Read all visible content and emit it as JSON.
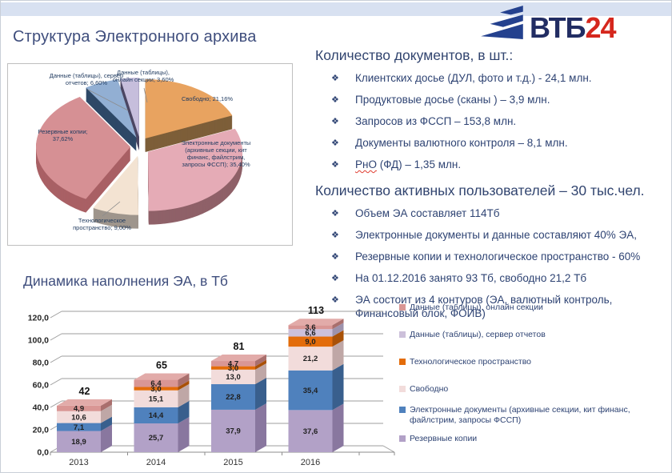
{
  "slide": {
    "title": "Структура Электронного архива"
  },
  "logo": {
    "brand": "ВТБ",
    "suffix": "24"
  },
  "docs": {
    "heading": "Количество документов, в шт.:",
    "items": [
      {
        "text": "Клиентских досье (ДУЛ, фото и т.д.) - 24,1 млн."
      },
      {
        "text": "Продуктовые досье (сканы ) – 3,9 млн."
      },
      {
        "text": "Запросов из ФССП – 153,8 млн."
      },
      {
        "text": "Документы валютного контроля – 8,1 млн."
      },
      {
        "text": "РнО (ФД) – 1,35 млн.",
        "wavy_prefix": "РнО"
      }
    ]
  },
  "users": {
    "heading": "Количество активных пользователей – 30 тыс.чел.",
    "items": [
      {
        "text": "Объем ЭА составляет 114Тб"
      },
      {
        "text": "Электронные документы и данные составляют 40% ЭА,"
      },
      {
        "text": "Резервные копии и технологическое пространство - 60%"
      },
      {
        "text": "На 01.12.2016 занято 93 Тб, свободно 21,2 Тб"
      },
      {
        "text": "ЭА состоит из 4 контуров (ЭА, валютный контроль, Финансовый блок, ФОИВ)"
      }
    ]
  },
  "chart_data": [
    {
      "type": "pie",
      "title": "Структура Электронного архива",
      "style": "3d-exploded",
      "slices": [
        {
          "label": "Свободно; 21,16%",
          "value": 21.16,
          "color": "#E8A360",
          "side": "#7D5E39"
        },
        {
          "label": "Электронные документы (архивные секции, кит финанс, файлстрим, запросы ФССП); 35,40%",
          "value": 35.4,
          "color": "#E5ABB6",
          "side": "#8F6168"
        },
        {
          "label": "Технологическое пространство; 9,00%",
          "value": 9.0,
          "color": "#F3E3D2",
          "side": "#9E958C"
        },
        {
          "label": "Резервные копии; 37,62%",
          "value": 37.62,
          "color": "#D69094",
          "side": "#A96065"
        },
        {
          "label": "Данные (таблицы), сервер отчетов; 6,60%",
          "value": 6.6,
          "color": "#92AFD3",
          "side": "#2E4867"
        },
        {
          "label": "Данные (таблицы), онлайн секции; 3,60%",
          "value": 3.6,
          "color": "#C6BEDC",
          "side": "#4C4763"
        }
      ]
    },
    {
      "type": "bar",
      "style": "stacked-3d",
      "title": "Динамика наполнения ЭА, в Тб",
      "categories": [
        "2013",
        "2014",
        "2015",
        "2016"
      ],
      "totals": [
        "42",
        "65",
        "81",
        "113"
      ],
      "ylim": [
        0,
        120
      ],
      "ytick_step": 20,
      "ytick_labels": [
        "0,0",
        "20,0",
        "40,0",
        "60,0",
        "80,0",
        "100,0",
        "120,0"
      ],
      "grid": true,
      "legend_position": "right",
      "series": [
        {
          "name": "Резервные копии",
          "color": "#B2A1C7",
          "side": "#89779F",
          "top": "#C6B9D6",
          "values": [
            18.9,
            25.7,
            37.9,
            37.6
          ]
        },
        {
          "name": "Электронные документы (архивные секции, кит финанс, файлстрим, запросы ФССП)",
          "color": "#4F81BD",
          "side": "#395F8D",
          "top": "#7399C9",
          "values": [
            7.1,
            14.4,
            22.8,
            35.4
          ]
        },
        {
          "name": "Свободно",
          "color": "#F2DCDB",
          "side": "#BFA7A6",
          "top": "#F6E6E5",
          "values": [
            10.6,
            15.1,
            13.0,
            21.2
          ]
        },
        {
          "name": "Технологическое пространство",
          "color": "#E36C0A",
          "side": "#A95107",
          "top": "#ED8A3A",
          "values": [
            null,
            3.0,
            3.0,
            9.0
          ]
        },
        {
          "name": "Данные (таблицы), сервер отчетов",
          "color": "#CCC0DA",
          "side": "#9D92AC",
          "top": "#D9D0E3",
          "values": [
            null,
            null,
            null,
            6.6
          ]
        },
        {
          "name": "Данные (таблицы), онлайн секции",
          "color": "#D99694",
          "side": "#A96F6D",
          "top": "#E2ABA9",
          "values": [
            4.9,
            6.4,
            4.7,
            3.6
          ]
        }
      ],
      "legend_series_order": [
        5,
        4,
        3,
        2,
        1,
        0
      ]
    }
  ]
}
